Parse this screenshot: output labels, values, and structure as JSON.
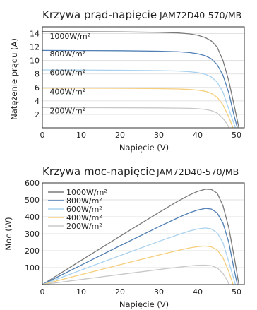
{
  "chart_data": [
    {
      "type": "line",
      "title": "Krzywa prąd-napięcie",
      "subtitle": "JAM72D40-570/MB",
      "xlabel": "Napięcie (V)",
      "ylabel": "Natężenie prądu (A)",
      "xlim": [
        0,
        52
      ],
      "ylim": [
        0,
        15
      ],
      "xticks": [
        0,
        10,
        20,
        30,
        40,
        50
      ],
      "yticks": [
        2,
        4,
        6,
        8,
        10,
        12,
        14
      ],
      "grid": true,
      "series": [
        {
          "name": "1000W/m²",
          "color": "#7a7a7a",
          "x": [
            0,
            10,
            20,
            30,
            35,
            38,
            40,
            42,
            43.5,
            45,
            46.5,
            48,
            49.5,
            50.6
          ],
          "y": [
            14.3,
            14.28,
            14.25,
            14.18,
            14.1,
            13.95,
            13.75,
            13.4,
            12.9,
            12.0,
            10.0,
            7.0,
            3.0,
            0
          ]
        },
        {
          "name": "800W/m²",
          "color": "#4f7fb5",
          "x": [
            0,
            10,
            20,
            30,
            35,
            38,
            40,
            42,
            43.5,
            45,
            46.5,
            48,
            49.3,
            50.2
          ],
          "y": [
            11.5,
            11.48,
            11.45,
            11.38,
            11.3,
            11.17,
            11.0,
            10.7,
            10.25,
            9.4,
            7.8,
            5.2,
            2.0,
            0
          ]
        },
        {
          "name": "600W/m²",
          "color": "#a9d2ee",
          "x": [
            0,
            10,
            20,
            30,
            35,
            38,
            40,
            42,
            43.5,
            45,
            46.5,
            48,
            49.7
          ],
          "y": [
            8.6,
            8.58,
            8.55,
            8.5,
            8.43,
            8.33,
            8.2,
            7.95,
            7.55,
            6.8,
            5.3,
            2.8,
            0
          ]
        },
        {
          "name": "400W/m²",
          "color": "#f5cf7c",
          "x": [
            0,
            10,
            20,
            30,
            35,
            38,
            40,
            42,
            43.5,
            45,
            46.5,
            48,
            49.1
          ],
          "y": [
            5.9,
            5.88,
            5.86,
            5.82,
            5.77,
            5.7,
            5.6,
            5.42,
            5.12,
            4.55,
            3.4,
            1.6,
            0
          ]
        },
        {
          "name": "200W/m²",
          "color": "#c8c8c8",
          "x": [
            0,
            10,
            20,
            30,
            35,
            38,
            40,
            42,
            43.5,
            45,
            46.5,
            47.5,
            48.1
          ],
          "y": [
            3.0,
            2.99,
            2.98,
            2.96,
            2.93,
            2.89,
            2.84,
            2.73,
            2.56,
            2.2,
            1.4,
            0.6,
            0
          ]
        }
      ]
    },
    {
      "type": "line",
      "title": "Krzywa moc-napięcie",
      "subtitle": "JAM72D40-570/MB",
      "xlabel": "Napięcie (V)",
      "ylabel": "Moc (W)",
      "xlim": [
        0,
        52
      ],
      "ylim": [
        0,
        600
      ],
      "xticks": [
        0,
        10,
        20,
        30,
        40,
        50
      ],
      "yticks": [
        100,
        200,
        300,
        400,
        500,
        600
      ],
      "grid": true,
      "legend_position": "top-left",
      "series": [
        {
          "name": "1000W/m²",
          "color": "#7a7a7a",
          "x": [
            0,
            10,
            20,
            30,
            35,
            38,
            40,
            42,
            43.5,
            45,
            46.5,
            48,
            49.5,
            50.6
          ],
          "y": [
            0,
            142.8,
            285,
            425.4,
            493.5,
            530.1,
            550,
            562.8,
            561.2,
            540,
            465,
            336,
            148.5,
            0
          ]
        },
        {
          "name": "800W/m²",
          "color": "#4f7fb5",
          "x": [
            0,
            10,
            20,
            30,
            35,
            38,
            40,
            42,
            43.5,
            45,
            46.5,
            48,
            49.3,
            50.2
          ],
          "y": [
            0,
            114.8,
            229,
            341.4,
            395.5,
            424.5,
            440,
            449.4,
            445.9,
            423,
            362.7,
            249.6,
            98.6,
            0
          ]
        },
        {
          "name": "600W/m²",
          "color": "#a9d2ee",
          "x": [
            0,
            10,
            20,
            30,
            35,
            38,
            40,
            42,
            43.5,
            45,
            46.5,
            48,
            49.7
          ],
          "y": [
            0,
            85.8,
            171,
            255,
            295,
            316.5,
            328,
            333.9,
            328.4,
            306,
            246.5,
            134.4,
            0
          ]
        },
        {
          "name": "400W/m²",
          "color": "#f5cf7c",
          "x": [
            0,
            10,
            20,
            30,
            35,
            38,
            40,
            42,
            43.5,
            45,
            46.5,
            48,
            49.1
          ],
          "y": [
            0,
            58.8,
            117.2,
            174.6,
            202,
            216.6,
            224,
            227.6,
            222.7,
            204.8,
            158.1,
            76.8,
            0
          ]
        },
        {
          "name": "200W/m²",
          "color": "#c8c8c8",
          "x": [
            0,
            10,
            20,
            30,
            35,
            38,
            40,
            42,
            43.5,
            45,
            46.5,
            47.5,
            48.1
          ],
          "y": [
            0,
            29.9,
            59.6,
            88.8,
            102.6,
            109.8,
            113.6,
            114.7,
            111.4,
            99,
            65.1,
            28.5,
            0
          ]
        }
      ]
    }
  ],
  "labels": {
    "iv_irradiance": [
      "1000W/m²",
      "800W/m²",
      "600W/m²",
      "400W/m²",
      "200W/m²"
    ],
    "iv_label_y": [
      13.2,
      10.6,
      7.8,
      5.0,
      2.15
    ],
    "iv_label_x": 1.9
  }
}
